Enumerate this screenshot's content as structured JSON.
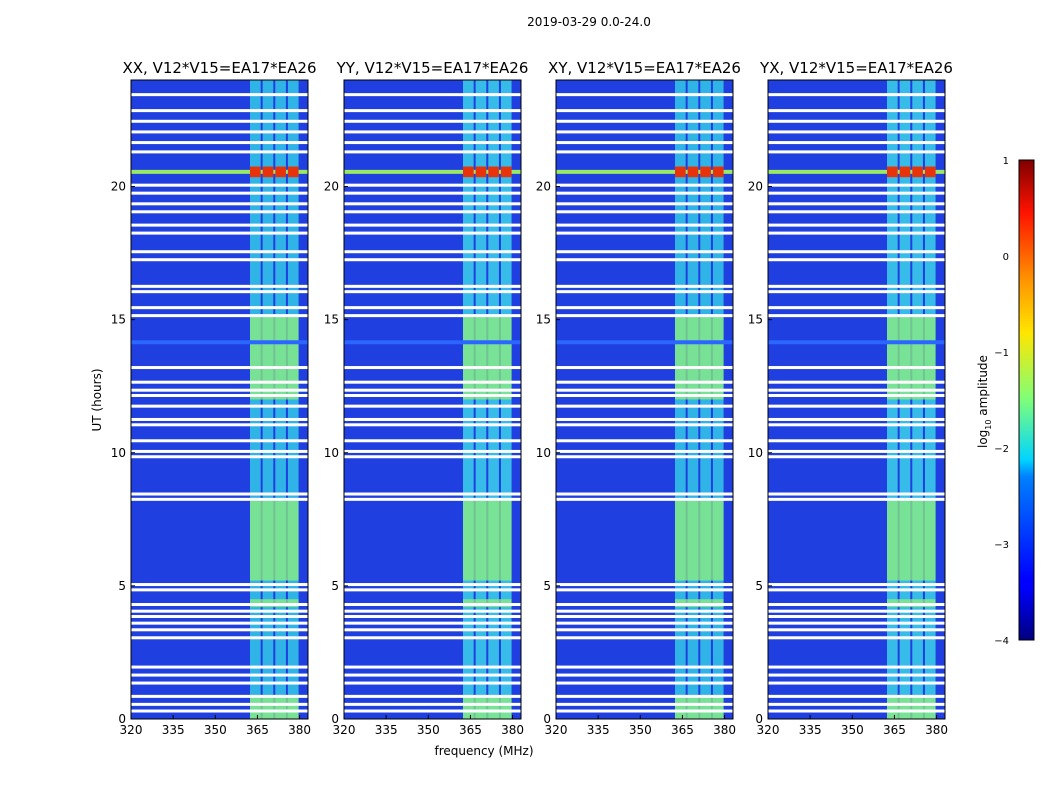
{
  "chart_data": {
    "type": "heatmap",
    "suptitle": "2019-03-29 0.0-24.0",
    "colormap": "jet",
    "panels": [
      {
        "title": "XX, V12*V15=EA17*EA26"
      },
      {
        "title": "YY, V12*V15=EA17*EA26"
      },
      {
        "title": "XY, V12*V15=EA17*EA26"
      },
      {
        "title": "YX, V12*V15=EA17*EA26"
      }
    ],
    "xlabel": "frequency (MHz)",
    "ylabel": "UT (hours)",
    "xlim": [
      320,
      383
    ],
    "ylim": [
      0,
      24
    ],
    "xticks": [
      320,
      335,
      350,
      365,
      380
    ],
    "yticks": [
      0,
      5,
      10,
      15,
      20
    ],
    "bright_band_mhz": [
      362,
      381
    ],
    "band_subchannel_edges_mhz": [
      362,
      366.5,
      371,
      375.5,
      380
    ],
    "flagged_time_hours": [
      0.3,
      0.55,
      0.85,
      1.35,
      1.65,
      1.95,
      3.05,
      3.35,
      3.6,
      3.85,
      4.05,
      4.3,
      4.85,
      5.05,
      8.25,
      8.45,
      9.85,
      10.05,
      10.45,
      11.05,
      11.25,
      11.75,
      12.15,
      12.35,
      12.65,
      13.2,
      15.15,
      15.45,
      16.05,
      16.25,
      17.25,
      17.55,
      18.25,
      18.55,
      19.05,
      19.35,
      19.75,
      20.05,
      21.3,
      21.65,
      22.05,
      22.45,
      22.85,
      23.45
    ],
    "rfi_time_hours": [
      20.55,
      14.15
    ],
    "colorbar": {
      "label": "log10 amplitude",
      "label_main": "log",
      "label_sub": "10",
      "label_rest": " amplitude",
      "range": [
        -4,
        1
      ],
      "ticks": [
        "1",
        "0",
        "−1",
        "−2",
        "−3",
        "−4"
      ]
    }
  }
}
